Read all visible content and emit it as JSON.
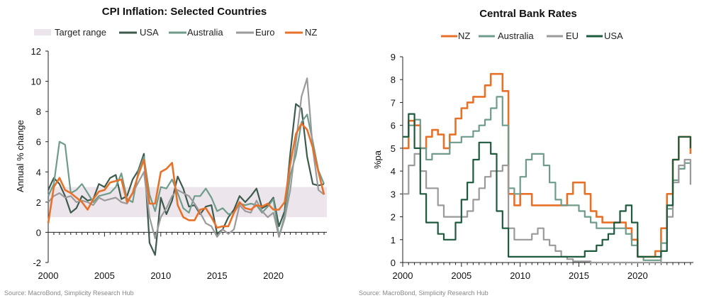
{
  "chart_data": [
    {
      "type": "line",
      "title": "CPI Inflation: Selected Countries",
      "ylabel": "Annual % change",
      "xlabel": "",
      "xlim": [
        2000,
        2024.75
      ],
      "ylim": [
        -2,
        12
      ],
      "yticks": [
        "12",
        "10",
        "8",
        "6",
        "4",
        "2",
        "0",
        "-2"
      ],
      "ytick_values": [
        12,
        10,
        8,
        6,
        4,
        2,
        0,
        -2
      ],
      "xticks": [
        "2000",
        "2005",
        "2010",
        "2015",
        "2020"
      ],
      "xtick_values": [
        2000,
        2005,
        2010,
        2015,
        2020
      ],
      "band": {
        "name": "Target range",
        "from": 1,
        "to": 3,
        "color": "#ece6ec"
      },
      "legend": [
        "Target range",
        "USA",
        "Australia",
        "Euro",
        "NZ"
      ],
      "series": [
        {
          "name": "USA",
          "color": "#3d5a4c",
          "x": [
            2000,
            2000.5,
            2001,
            2001.5,
            2002,
            2002.5,
            2003,
            2003.5,
            2004,
            2004.5,
            2005,
            2005.5,
            2006,
            2006.5,
            2007,
            2007.5,
            2008,
            2008.5,
            2009,
            2009.5,
            2010,
            2010.5,
            2011,
            2011.5,
            2012,
            2012.5,
            2013,
            2013.5,
            2014,
            2014.5,
            2015,
            2015.5,
            2016,
            2016.5,
            2017,
            2017.5,
            2018,
            2018.5,
            2019,
            2019.5,
            2020,
            2020.5,
            2021,
            2021.5,
            2022,
            2022.5,
            2023,
            2023.5,
            2024,
            2024.5
          ],
          "values": [
            2.8,
            3.6,
            3.2,
            2.4,
            1.3,
            1.6,
            2.4,
            2.1,
            2.2,
            3.2,
            3.0,
            3.6,
            3.8,
            2.2,
            2.4,
            3.5,
            4.1,
            5.2,
            -0.7,
            -1.5,
            2.3,
            1.2,
            2.1,
            3.7,
            2.9,
            1.7,
            1.8,
            1.2,
            1.7,
            1.8,
            -0.1,
            0.2,
            1.0,
            1.5,
            2.4,
            2.0,
            2.4,
            2.9,
            1.6,
            1.8,
            2.3,
            0.4,
            1.4,
            5.2,
            8.5,
            8.2,
            5.0,
            3.2,
            3.1,
            3.2
          ]
        },
        {
          "name": "Australia",
          "color": "#6f9c8a",
          "x": [
            2000,
            2000.5,
            2001,
            2001.5,
            2002,
            2002.5,
            2003,
            2003.5,
            2004,
            2004.5,
            2005,
            2005.5,
            2006,
            2006.5,
            2007,
            2007.5,
            2008,
            2008.5,
            2009,
            2009.5,
            2010,
            2010.5,
            2011,
            2011.5,
            2012,
            2012.5,
            2013,
            2013.5,
            2014,
            2014.5,
            2015,
            2015.5,
            2016,
            2016.5,
            2017,
            2017.5,
            2018,
            2018.5,
            2019,
            2019.5,
            2020,
            2020.5,
            2021,
            2021.5,
            2022,
            2022.5,
            2023,
            2023.5,
            2024,
            2024.5
          ],
          "values": [
            2.4,
            3.2,
            6.0,
            5.8,
            2.6,
            2.8,
            3.2,
            2.6,
            2.0,
            2.4,
            2.5,
            2.6,
            3.0,
            3.9,
            2.2,
            2.0,
            4.0,
            5.0,
            2.5,
            1.4,
            3.0,
            2.9,
            3.5,
            2.6,
            1.6,
            1.3,
            2.4,
            2.4,
            2.9,
            2.3,
            1.4,
            1.6,
            1.2,
            1.3,
            1.9,
            1.8,
            1.9,
            1.8,
            1.3,
            1.7,
            2.2,
            -0.3,
            1.1,
            3.8,
            5.1,
            7.3,
            7.8,
            6.0,
            4.1,
            3.2
          ]
        },
        {
          "name": "Euro",
          "color": "#9a9a9a",
          "x": [
            2000,
            2000.5,
            2001,
            2001.5,
            2002,
            2002.5,
            2003,
            2003.5,
            2004,
            2004.5,
            2005,
            2005.5,
            2006,
            2006.5,
            2007,
            2007.5,
            2008,
            2008.5,
            2009,
            2009.5,
            2010,
            2010.5,
            2011,
            2011.5,
            2012,
            2012.5,
            2013,
            2013.5,
            2014,
            2014.5,
            2015,
            2015.5,
            2016,
            2016.5,
            2017,
            2017.5,
            2018,
            2018.5,
            2019,
            2019.5,
            2020,
            2020.5,
            2021,
            2021.5,
            2022,
            2022.5,
            2023,
            2023.5,
            2024,
            2024.5
          ],
          "values": [
            2.0,
            2.4,
            2.6,
            2.3,
            2.4,
            2.0,
            2.1,
            2.0,
            1.8,
            2.3,
            2.1,
            2.2,
            2.3,
            2.0,
            1.9,
            2.6,
            3.3,
            4.0,
            1.0,
            -0.4,
            1.0,
            1.6,
            2.4,
            2.8,
            2.6,
            2.4,
            1.9,
            1.3,
            0.6,
            0.4,
            -0.3,
            0.2,
            -0.1,
            0.2,
            1.8,
            1.4,
            1.3,
            2.1,
            1.4,
            1.0,
            1.3,
            -0.3,
            0.9,
            2.8,
            5.9,
            9.0,
            10.2,
            5.5,
            2.8,
            2.5
          ]
        },
        {
          "name": "NZ",
          "color": "#e8712a",
          "x": [
            2000,
            2000.5,
            2001,
            2001.5,
            2002,
            2002.5,
            2003,
            2003.5,
            2004,
            2004.5,
            2005,
            2005.5,
            2006,
            2006.5,
            2007,
            2007.5,
            2008,
            2008.5,
            2009,
            2009.5,
            2010,
            2010.5,
            2011,
            2011.5,
            2012,
            2012.5,
            2013,
            2013.5,
            2014,
            2014.5,
            2015,
            2015.5,
            2016,
            2016.5,
            2017,
            2017.5,
            2018,
            2018.5,
            2019,
            2019.5,
            2020,
            2020.5,
            2021,
            2021.5,
            2022,
            2022.5,
            2023,
            2023.5,
            2024,
            2024.5
          ],
          "values": [
            0.6,
            3.0,
            3.6,
            2.8,
            2.6,
            2.3,
            2.0,
            1.5,
            2.2,
            2.7,
            2.8,
            3.3,
            3.4,
            3.5,
            2.0,
            2.6,
            3.8,
            4.8,
            1.9,
            1.9,
            4.0,
            4.2,
            4.6,
            1.8,
            1.0,
            0.8,
            0.8,
            1.5,
            1.6,
            1.0,
            0.3,
            0.4,
            0.4,
            1.3,
            2.0,
            1.6,
            1.5,
            1.8,
            1.7,
            1.9,
            1.5,
            1.5,
            2.0,
            4.5,
            6.5,
            7.2,
            6.8,
            5.6,
            4.0,
            2.5
          ]
        }
      ]
    },
    {
      "type": "line",
      "title": "Central Bank Rates",
      "ylabel": "%pa",
      "xlabel": "",
      "xlim": [
        2000,
        2024.75
      ],
      "ylim": [
        0,
        9
      ],
      "yticks": [
        "9",
        "8",
        "7",
        "6",
        "5",
        "4",
        "3",
        "2",
        "1",
        "0"
      ],
      "ytick_values": [
        9,
        8,
        7,
        6,
        5,
        4,
        3,
        2,
        1,
        0
      ],
      "xticks": [
        "2000",
        "2005",
        "2010",
        "2015",
        "2020"
      ],
      "xtick_values": [
        2000,
        2005,
        2010,
        2015,
        2020
      ],
      "legend": [
        "NZ",
        "Australia",
        "EU",
        "USA"
      ],
      "series": [
        {
          "name": "NZ",
          "color": "#e8712a",
          "x": [
            2000,
            2000.5,
            2001,
            2001.5,
            2002,
            2002.5,
            2003,
            2003.5,
            2004,
            2004.5,
            2005,
            2005.5,
            2006,
            2006.5,
            2007,
            2007.5,
            2008,
            2008.5,
            2009,
            2009.5,
            2010,
            2010.5,
            2011,
            2011.5,
            2012,
            2012.5,
            2013,
            2013.5,
            2014,
            2014.5,
            2015,
            2015.5,
            2016,
            2016.5,
            2017,
            2017.5,
            2018,
            2018.5,
            2019,
            2019.5,
            2020,
            2020.5,
            2021,
            2021.5,
            2022,
            2022.5,
            2023,
            2023.5,
            2024,
            2024.5
          ],
          "values": [
            5.0,
            6.2,
            6.0,
            5.0,
            5.5,
            5.8,
            5.6,
            5.0,
            5.6,
            6.3,
            6.75,
            7.0,
            7.25,
            7.25,
            7.75,
            8.25,
            8.25,
            7.5,
            3.0,
            2.5,
            3.0,
            3.0,
            2.5,
            2.5,
            2.5,
            2.5,
            2.5,
            2.5,
            3.0,
            3.5,
            3.5,
            3.0,
            2.25,
            2.0,
            1.75,
            1.75,
            1.75,
            1.75,
            1.5,
            1.0,
            0.25,
            0.25,
            0.25,
            0.5,
            1.5,
            3.0,
            4.5,
            5.5,
            5.5,
            4.75
          ]
        },
        {
          "name": "Australia",
          "color": "#6f9c8a",
          "x": [
            2000,
            2000.5,
            2001,
            2001.5,
            2002,
            2002.5,
            2003,
            2003.5,
            2004,
            2004.5,
            2005,
            2005.5,
            2006,
            2006.5,
            2007,
            2007.5,
            2008,
            2008.5,
            2009,
            2009.5,
            2010,
            2010.5,
            2011,
            2011.5,
            2012,
            2012.5,
            2013,
            2013.5,
            2014,
            2014.5,
            2015,
            2015.5,
            2016,
            2016.5,
            2017,
            2017.5,
            2018,
            2018.5,
            2019,
            2019.5,
            2020,
            2020.5,
            2021,
            2021.5,
            2022,
            2022.5,
            2023,
            2023.5,
            2024,
            2024.5
          ],
          "values": [
            5.5,
            6.0,
            6.25,
            5.0,
            4.5,
            4.75,
            4.75,
            4.75,
            5.25,
            5.25,
            5.5,
            5.5,
            5.75,
            6.0,
            6.25,
            6.75,
            7.25,
            6.0,
            3.25,
            3.0,
            3.75,
            4.5,
            4.75,
            4.75,
            4.25,
            3.5,
            2.75,
            2.5,
            2.5,
            2.5,
            2.25,
            2.0,
            1.75,
            1.5,
            1.5,
            1.5,
            1.5,
            1.5,
            1.25,
            0.75,
            0.25,
            0.1,
            0.1,
            0.1,
            0.85,
            2.35,
            3.6,
            4.1,
            4.35,
            4.35
          ]
        },
        {
          "name": "EU",
          "color": "#9a9a9a",
          "x": [
            2000,
            2000.5,
            2001,
            2001.5,
            2002,
            2002.5,
            2003,
            2003.5,
            2004,
            2004.5,
            2005,
            2005.5,
            2006,
            2006.5,
            2007,
            2007.5,
            2008,
            2008.5,
            2009,
            2009.5,
            2010,
            2010.5,
            2011,
            2011.5,
            2012,
            2012.5,
            2013,
            2013.5,
            2014,
            2014.5,
            2015,
            2015.5,
            2016,
            2016.5,
            2017,
            2017.5,
            2018,
            2018.5,
            2019,
            2019.5,
            2020,
            2020.5,
            2021,
            2021.5,
            2022,
            2022.5,
            2023,
            2023.5,
            2024,
            2024.5
          ],
          "values": [
            3.0,
            4.25,
            4.75,
            4.0,
            3.25,
            3.25,
            2.5,
            2.0,
            2.0,
            2.0,
            2.0,
            2.25,
            2.75,
            3.25,
            3.75,
            4.0,
            4.0,
            4.25,
            1.5,
            1.0,
            1.0,
            1.0,
            1.25,
            1.5,
            1.0,
            0.75,
            0.5,
            0.25,
            0.15,
            0.05,
            0.05,
            0.05,
            0.0,
            0.0,
            0.0,
            0.0,
            0.0,
            0.0,
            0.0,
            0.0,
            0.0,
            0.0,
            0.0,
            0.0,
            0.5,
            2.0,
            3.5,
            4.25,
            4.5,
            3.4
          ]
        },
        {
          "name": "USA",
          "color": "#1e5a3e",
          "x": [
            2000,
            2000.5,
            2001,
            2001.5,
            2002,
            2002.5,
            2003,
            2003.5,
            2004,
            2004.5,
            2005,
            2005.5,
            2006,
            2006.5,
            2007,
            2007.5,
            2008,
            2008.5,
            2009,
            2009.5,
            2010,
            2010.5,
            2011,
            2011.5,
            2012,
            2012.5,
            2013,
            2013.5,
            2014,
            2014.5,
            2015,
            2015.5,
            2016,
            2016.5,
            2017,
            2017.5,
            2018,
            2018.5,
            2019,
            2019.5,
            2020,
            2020.5,
            2021,
            2021.5,
            2022,
            2022.5,
            2023,
            2023.5,
            2024,
            2024.5
          ],
          "values": [
            5.5,
            6.5,
            5.0,
            3.0,
            1.75,
            1.75,
            1.25,
            1.0,
            1.0,
            1.75,
            2.75,
            3.5,
            4.5,
            5.25,
            5.25,
            4.75,
            2.25,
            1.5,
            0.25,
            0.25,
            0.25,
            0.25,
            0.25,
            0.25,
            0.25,
            0.25,
            0.25,
            0.25,
            0.25,
            0.25,
            0.25,
            0.5,
            0.5,
            0.75,
            1.0,
            1.25,
            1.75,
            2.25,
            2.5,
            1.75,
            0.25,
            0.25,
            0.25,
            0.25,
            0.5,
            2.5,
            4.5,
            5.5,
            5.5,
            5.0
          ]
        }
      ]
    }
  ],
  "sources": {
    "left": "Source: MacroBond, Simplicity Research Hub",
    "right": "Source: MacroBond, Simplicity Research Hub"
  }
}
